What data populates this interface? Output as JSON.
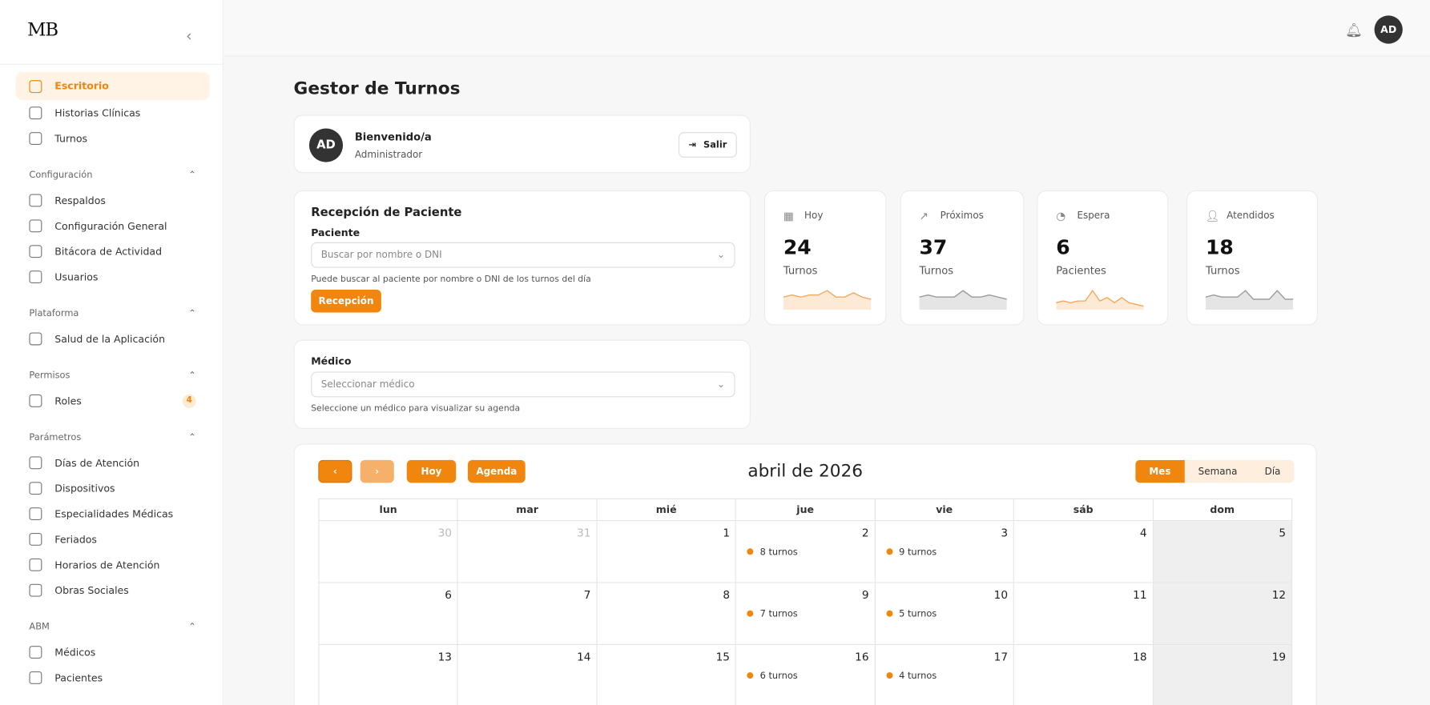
{
  "app": {
    "logo_text": "MB"
  },
  "sidebar": {
    "top": [
      {
        "label": "Escritorio",
        "icon": "home-icon",
        "active": true
      },
      {
        "label": "Historias Clínicas",
        "icon": "file-icon"
      },
      {
        "label": "Turnos",
        "icon": "calendar-icon"
      }
    ],
    "sections": [
      {
        "title": "Configuración",
        "items": [
          {
            "label": "Respaldos",
            "icon": "database-icon"
          },
          {
            "label": "Configuración General",
            "icon": "gear-icon"
          },
          {
            "label": "Bitácora de Actividad",
            "icon": "clipboard-icon"
          },
          {
            "label": "Usuarios",
            "icon": "lock-icon"
          }
        ]
      },
      {
        "title": "Plataforma",
        "items": [
          {
            "label": "Salud de la Aplicación",
            "icon": "heart-icon"
          }
        ]
      },
      {
        "title": "Permisos",
        "items": [
          {
            "label": "Roles",
            "icon": "shield-icon",
            "badge": "4"
          }
        ]
      },
      {
        "title": "Parámetros",
        "items": [
          {
            "label": "Días de Atención",
            "icon": "calendar-icon"
          },
          {
            "label": "Dispositivos",
            "icon": "phone-icon"
          },
          {
            "label": "Especialidades Médicas",
            "icon": "folder-icon"
          },
          {
            "label": "Feriados",
            "icon": "folder-icon"
          },
          {
            "label": "Horarios de Atención",
            "icon": "calendar-icon"
          },
          {
            "label": "Obras Sociales",
            "icon": "card-icon"
          }
        ]
      },
      {
        "title": "ABM",
        "items": [
          {
            "label": "Médicos",
            "icon": "doctor-icon"
          },
          {
            "label": "Pacientes",
            "icon": "users-icon"
          }
        ]
      }
    ]
  },
  "header": {
    "avatar": "AD"
  },
  "page": {
    "title": "Gestor de Turnos"
  },
  "welcome": {
    "avatar": "AD",
    "greeting": "Bienvenido/a",
    "role": "Administrador",
    "logout": "Salir"
  },
  "reception": {
    "title": "Recepción de Paciente",
    "label": "Paciente",
    "placeholder": "Buscar por nombre o DNI",
    "hint": "Puede buscar al paciente por nombre o DNI de los turnos del día",
    "button": "Recepción"
  },
  "doctor": {
    "label": "Médico",
    "placeholder": "Seleccionar médico",
    "hint": "Seleccione un médico para visualizar su agenda"
  },
  "stats": [
    {
      "title": "Hoy",
      "value": "24",
      "unit": "Turnos",
      "icon": "calendar-icon",
      "color": "#f5a65b",
      "trend": [
        5,
        6,
        5,
        6,
        6,
        8,
        5,
        5,
        7,
        5,
        4
      ]
    },
    {
      "title": "Próximos",
      "value": "37",
      "unit": "Turnos",
      "icon": "trending-up-icon",
      "color": "#999999",
      "trend": [
        5,
        6,
        5,
        5,
        5,
        8,
        5,
        5,
        6,
        5,
        4
      ]
    },
    {
      "title": "Espera",
      "value": "6",
      "unit": "Pacientes",
      "icon": "stopwatch-icon",
      "color": "#f5a65b",
      "trend": [
        3,
        4,
        3,
        4,
        4,
        10,
        4,
        6,
        3,
        6,
        3,
        2,
        1
      ]
    },
    {
      "title": "Atendidos",
      "value": "18",
      "unit": "Turnos",
      "icon": "user-icon",
      "color": "#999999",
      "trend": [
        5,
        6,
        5,
        5,
        5,
        8,
        4,
        4,
        4,
        8,
        4,
        4
      ]
    }
  ],
  "calendar": {
    "title": "abril de 2026",
    "today": "Hoy",
    "agenda": "Agenda",
    "views": [
      {
        "label": "Mes",
        "active": true
      },
      {
        "label": "Semana"
      },
      {
        "label": "Día"
      }
    ],
    "weekdays": [
      "lun",
      "mar",
      "mié",
      "jue",
      "vie",
      "sáb",
      "dom"
    ],
    "weeks": [
      [
        {
          "d": "30",
          "other": true
        },
        {
          "d": "31",
          "other": true
        },
        {
          "d": "1"
        },
        {
          "d": "2",
          "ev": "8 turnos"
        },
        {
          "d": "3",
          "ev": "9 turnos"
        },
        {
          "d": "4"
        },
        {
          "d": "5"
        }
      ],
      [
        {
          "d": "6"
        },
        {
          "d": "7"
        },
        {
          "d": "8"
        },
        {
          "d": "9",
          "ev": "7 turnos"
        },
        {
          "d": "10",
          "ev": "5 turnos"
        },
        {
          "d": "11"
        },
        {
          "d": "12"
        }
      ],
      [
        {
          "d": "13"
        },
        {
          "d": "14"
        },
        {
          "d": "15"
        },
        {
          "d": "16",
          "ev": "6 turnos"
        },
        {
          "d": "17",
          "ev": "4 turnos"
        },
        {
          "d": "18"
        },
        {
          "d": "19"
        }
      ]
    ]
  },
  "colors": {
    "accent": "#f0860d"
  }
}
